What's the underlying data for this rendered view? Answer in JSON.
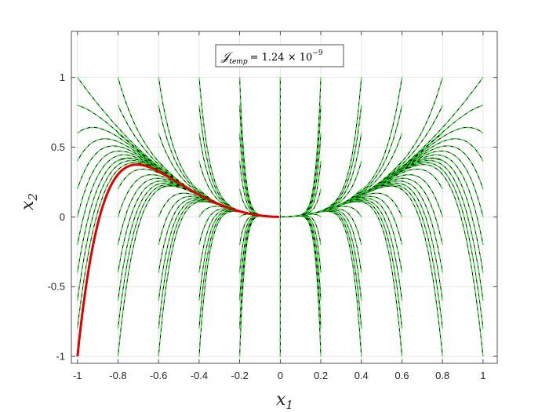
{
  "chart_data": {
    "type": "line",
    "title": "",
    "xlabel": "x",
    "xlabel_sub": "1",
    "ylabel": "x",
    "ylabel_sub": "2",
    "xlim": [
      -1.03,
      1.07
    ],
    "ylim": [
      -1.05,
      1.33
    ],
    "xticks": [
      -1,
      -0.8,
      -0.6,
      -0.4,
      -0.2,
      0,
      0.2,
      0.4,
      0.6,
      0.8,
      1
    ],
    "yticks": [
      -1,
      -0.5,
      0,
      0.5,
      1
    ],
    "grid": true,
    "annotation": {
      "symbol": "𝒥",
      "subscript": "temp",
      "equals": "= 1.24 × 10",
      "exponent": "−9"
    },
    "colors": {
      "trajectory_dash_black": "#000000",
      "trajectory_dash_green": "#22ee22",
      "highlighted_trajectory": "#e00000",
      "grid": "#dfdfdf",
      "axes": "#262626"
    },
    "initial_conditions": {
      "x0_values": [
        -1,
        -0.8,
        -0.6,
        -0.4,
        -0.2,
        0.2,
        0.4,
        0.6,
        0.8,
        1
      ],
      "y0_values": [
        -1,
        -0.8,
        -0.6,
        -0.4,
        -0.2,
        0,
        0.2,
        0.4,
        0.6,
        0.8,
        1
      ],
      "center_line_x": 0
    },
    "highlighted_trajectory": {
      "start": [
        -1,
        -1
      ],
      "peak": [
        -0.765,
        0.575
      ],
      "end": [
        0,
        0
      ]
    }
  }
}
